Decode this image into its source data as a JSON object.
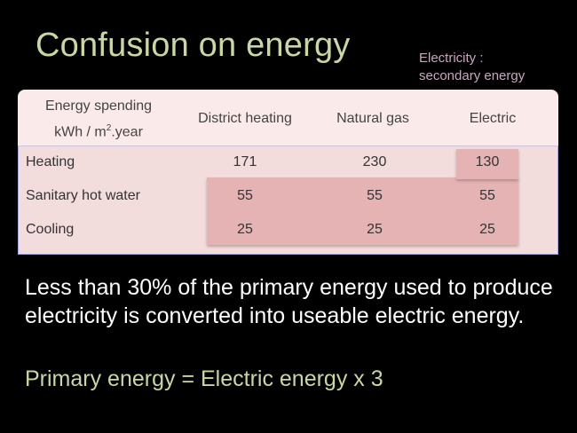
{
  "title": "Confusion on energy",
  "note": {
    "line1": "Electricity :",
    "line2": "secondary energy"
  },
  "table": {
    "corner_line1": "Energy spending",
    "corner_line2_prefix": "kWh / m",
    "corner_sup": "2",
    "corner_line2_suffix": ".year",
    "columns": [
      "District heating",
      "Natural gas",
      "Electric"
    ],
    "rows": [
      {
        "label": "Heating",
        "values": [
          "171",
          "230",
          "130"
        ]
      },
      {
        "label": "Sanitary hot water",
        "values": [
          "55",
          "55",
          "55"
        ]
      },
      {
        "label": "Cooling",
        "values": [
          "25",
          "25",
          "25"
        ]
      }
    ]
  },
  "body_text": "Less than 30% of the primary energy used to produce electricity is converted into useable electric energy.",
  "formula": "Primary energy = Electric energy x 3",
  "colors": {
    "background": "#000000",
    "title": "#c8d8a0",
    "note": "#c8a8bf",
    "header_bg": "#fbeaea",
    "body_bg": "#f3dcdc",
    "highlight": "#e6b3b5"
  }
}
